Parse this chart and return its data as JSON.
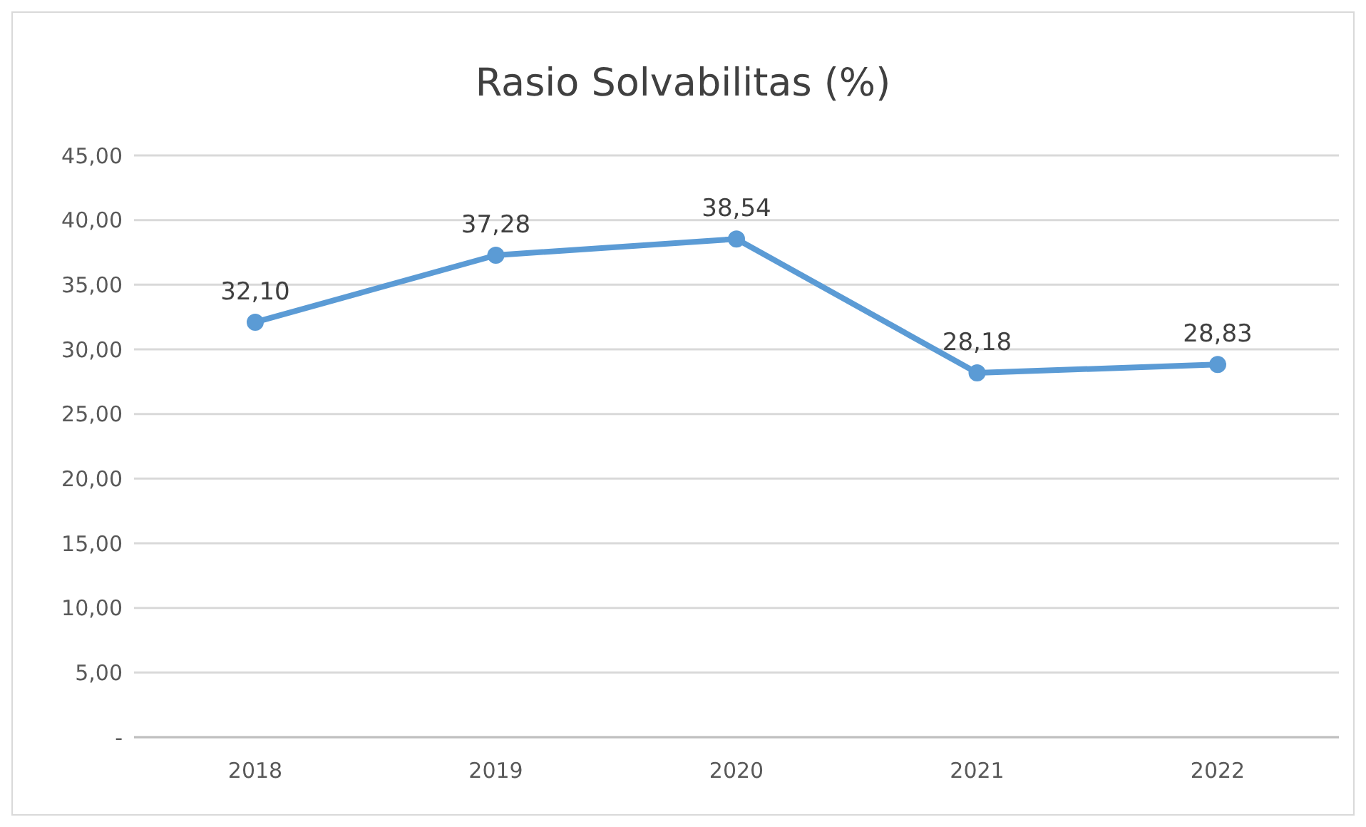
{
  "chart_data": {
    "type": "line",
    "title": "Rasio Solvabilitas (%)",
    "categories": [
      "2018",
      "2019",
      "2020",
      "2021",
      "2022"
    ],
    "series": [
      {
        "color": "#5b9bd5",
        "values": [
          32.1,
          37.28,
          38.54,
          28.18,
          28.83
        ],
        "value_labels": [
          "32,10",
          "37,28",
          "38,54",
          "28,18",
          "28,83"
        ]
      }
    ],
    "ylim": [
      0,
      45
    ],
    "yticks": [
      {
        "value": 0,
        "label": "-"
      },
      {
        "value": 5,
        "label": "5,00"
      },
      {
        "value": 10,
        "label": "10,00"
      },
      {
        "value": 15,
        "label": "15,00"
      },
      {
        "value": 20,
        "label": "20,00"
      },
      {
        "value": 25,
        "label": "25,00"
      },
      {
        "value": 30,
        "label": "30,00"
      },
      {
        "value": 35,
        "label": "35,00"
      },
      {
        "value": 40,
        "label": "40,00"
      },
      {
        "value": 45,
        "label": "45,00"
      }
    ],
    "grid": "y",
    "marker": "circle",
    "line_style": "solid"
  }
}
